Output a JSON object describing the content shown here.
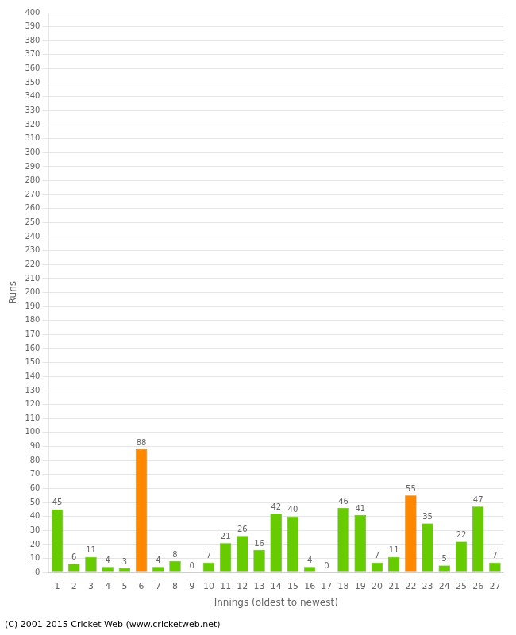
{
  "chart_data": {
    "type": "bar",
    "xlabel": "Innings (oldest to newest)",
    "ylabel": "Runs",
    "annotations": [
      "(C) 2001-2015 Cricket Web (www.cricketweb.net)"
    ],
    "categories": [
      "1",
      "2",
      "3",
      "4",
      "5",
      "6",
      "7",
      "8",
      "9",
      "10",
      "11",
      "12",
      "13",
      "14",
      "15",
      "16",
      "17",
      "18",
      "19",
      "20",
      "21",
      "22",
      "23",
      "24",
      "25",
      "26",
      "27"
    ],
    "values": [
      45,
      6,
      11,
      4,
      3,
      88,
      4,
      8,
      0,
      7,
      21,
      26,
      16,
      42,
      40,
      4,
      0,
      46,
      41,
      7,
      11,
      55,
      35,
      5,
      22,
      47,
      7
    ],
    "colors": [
      "#66cc00",
      "#66cc00",
      "#66cc00",
      "#66cc00",
      "#66cc00",
      "#ff8800",
      "#66cc00",
      "#66cc00",
      "#66cc00",
      "#66cc00",
      "#66cc00",
      "#66cc00",
      "#66cc00",
      "#66cc00",
      "#66cc00",
      "#66cc00",
      "#66cc00",
      "#66cc00",
      "#66cc00",
      "#66cc00",
      "#66cc00",
      "#ff8800",
      "#66cc00",
      "#66cc00",
      "#66cc00",
      "#66cc00",
      "#66cc00"
    ],
    "ylim": [
      0,
      400
    ],
    "yticks": [
      0,
      10,
      20,
      30,
      40,
      50,
      60,
      70,
      80,
      90,
      100,
      110,
      120,
      130,
      140,
      150,
      160,
      170,
      180,
      190,
      200,
      210,
      220,
      230,
      240,
      250,
      260,
      270,
      280,
      290,
      300,
      310,
      320,
      330,
      340,
      350,
      360,
      370,
      380,
      390,
      400
    ],
    "grid": true,
    "data_labels": true
  }
}
